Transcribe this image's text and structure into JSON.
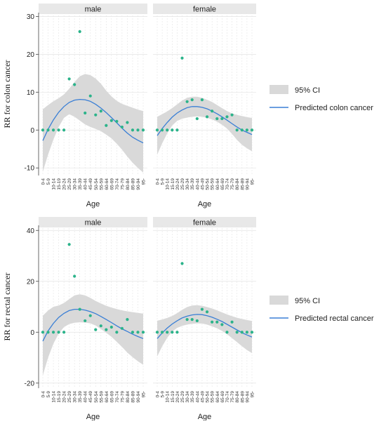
{
  "chart_data": [
    {
      "type": "scatter",
      "ylabel": "RR for colon cancer",
      "xlabel": "Age",
      "ylim": [
        -12,
        31
      ],
      "yticks": [
        30,
        20,
        10,
        0,
        -10
      ],
      "categories": [
        "0-4",
        "5-9",
        "10-14",
        "15-19",
        "20-24",
        "25-29",
        "30-34",
        "35-39",
        "40-44",
        "45-49",
        "50-54",
        "55-59",
        "60-64",
        "65-69",
        "70-74",
        "75-79",
        "80-84",
        "85-89",
        "90-94",
        "95-"
      ],
      "legend": {
        "ci_label": "95% CI",
        "line_label": "Predicted colon cancer",
        "placement": "right"
      },
      "panels": [
        {
          "title": "male",
          "points": [
            0,
            0,
            0,
            0,
            0,
            13.5,
            12,
            26,
            4.5,
            9,
            4,
            5,
            1.2,
            2.5,
            2.3,
            0.8,
            2,
            0,
            0,
            0
          ],
          "fit": [
            -2.8,
            0.2,
            2.7,
            4.7,
            6.2,
            7.3,
            7.9,
            8.1,
            8,
            7.6,
            6.8,
            5.8,
            4.6,
            3.3,
            1.9,
            0.5,
            -0.8,
            -1.9,
            -2.7,
            -3.4
          ],
          "ci_upper": [
            5.5,
            6.6,
            7.6,
            8.4,
            9.4,
            10.9,
            12.7,
            14.2,
            14.8,
            14.5,
            13.6,
            12.2,
            10.4,
            8.9,
            7.7,
            6.9,
            6.4,
            5.9,
            5.4,
            5
          ],
          "ci_lower": [
            -11,
            -6.5,
            -2.5,
            0.8,
            3.2,
            4.2,
            3.5,
            2.5,
            1.5,
            0.8,
            0.3,
            -0.3,
            -1.2,
            -2.2,
            -3.6,
            -5.2,
            -7,
            -8.6,
            -10,
            -11.2
          ]
        },
        {
          "title": "female",
          "points": [
            0,
            0,
            0,
            0,
            0,
            19,
            7.5,
            8,
            3,
            8,
            3.5,
            5,
            3,
            3,
            3.5,
            4,
            0,
            0,
            0,
            0
          ],
          "fit": [
            -1.5,
            0.4,
            2,
            3.4,
            4.5,
            5.3,
            5.9,
            6.2,
            6.2,
            6,
            5.6,
            5,
            4.3,
            3.5,
            2.6,
            1.7,
            0.8,
            0,
            -0.6,
            -1.2
          ],
          "ci_upper": [
            3.5,
            4.2,
            4.9,
            5.8,
            6.8,
            7.8,
            8.5,
            8.8,
            8.8,
            8.5,
            8,
            7.4,
            6.6,
            5.8,
            5,
            4.4,
            4,
            3.7,
            3.4,
            3.2
          ],
          "ci_lower": [
            -6.5,
            -3.5,
            -0.9,
            1.2,
            2.4,
            3,
            3.3,
            3.5,
            3.6,
            3.5,
            3.2,
            2.8,
            2.2,
            1.4,
            0.4,
            -1,
            -2.6,
            -3.9,
            -4.8,
            -5.6
          ]
        }
      ]
    },
    {
      "type": "scatter",
      "ylabel": "RR for rectal cancer",
      "xlabel": "Age",
      "ylim": [
        -22,
        42
      ],
      "yticks": [
        40,
        20,
        0,
        -20
      ],
      "categories": [
        "0-4",
        "5-9",
        "10-14",
        "15-19",
        "20-24",
        "25-29",
        "30-34",
        "35-39",
        "40-44",
        "45-49",
        "50-54",
        "55-59",
        "60-64",
        "65-69",
        "70-74",
        "75-79",
        "80-84",
        "85-89",
        "90-94",
        "95-"
      ],
      "legend": {
        "ci_label": "95% CI",
        "line_label": "Predicted rectal cancer",
        "placement": "right"
      },
      "panels": [
        {
          "title": "male",
          "points": [
            0,
            0,
            0,
            0,
            0,
            34.5,
            22,
            9,
            4.5,
            6.5,
            1,
            2.5,
            1,
            2,
            0,
            1.5,
            5,
            0,
            0,
            0
          ],
          "fit": [
            -3.5,
            0.5,
            3.5,
            5.8,
            7.4,
            8.5,
            9,
            9,
            8.7,
            8.1,
            7.3,
            6.2,
            5,
            3.8,
            2.5,
            1.3,
            0.3,
            -0.8,
            -1.7,
            -2.5
          ],
          "ci_upper": [
            6.5,
            8.5,
            10,
            10.5,
            11.5,
            13,
            14.5,
            14.9,
            14.5,
            13.5,
            12.3,
            11.3,
            10.4,
            9.7,
            9.1,
            8.6,
            8.2,
            7.9,
            7.6,
            7.3
          ],
          "ci_lower": [
            -17,
            -10,
            -4.5,
            -0.5,
            2,
            3.2,
            3.7,
            3.9,
            3.8,
            3.5,
            2.6,
            1.2,
            -0.2,
            -1.8,
            -3.8,
            -5.8,
            -8,
            -9.8,
            -11.4,
            -12.8
          ]
        },
        {
          "title": "female",
          "points": [
            0,
            0,
            0,
            0,
            0,
            27,
            5,
            5,
            4.5,
            9,
            8,
            4,
            4,
            3,
            0,
            4,
            0,
            0,
            0,
            0
          ],
          "fit": [
            -2.5,
            -0.3,
            1.6,
            3.2,
            4.5,
            5.6,
            6.3,
            6.8,
            7,
            6.9,
            6.5,
            5.9,
            5.1,
            4.2,
            3.1,
            2,
            0.9,
            -0.2,
            -1.1,
            -1.9
          ],
          "ci_upper": [
            4.5,
            5,
            5.6,
            6.4,
            7.5,
            8.8,
            9.9,
            10.5,
            10.6,
            10.4,
            9.9,
            9.3,
            8.6,
            7.8,
            7,
            6.3,
            5.7,
            5.2,
            4.8,
            4.4
          ],
          "ci_lower": [
            -9.5,
            -5.5,
            -2.2,
            0.3,
            1.7,
            2.5,
            3,
            3.3,
            3.5,
            3.4,
            3,
            2.3,
            1.5,
            0.5,
            -0.8,
            -2.3,
            -3.9,
            -5.5,
            -7,
            -8.2
          ]
        }
      ]
    }
  ]
}
